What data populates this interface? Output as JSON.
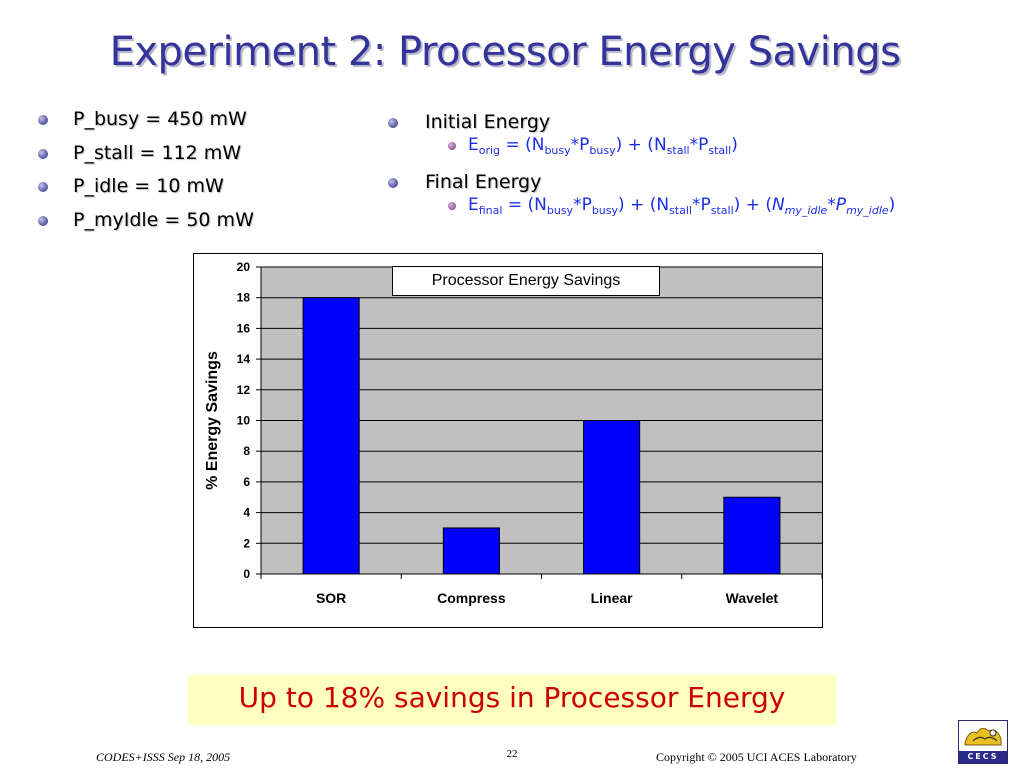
{
  "slide": {
    "title": "Experiment 2: Processor Energy Savings",
    "left_bullets": [
      "P_busy = 450 mW",
      "P_stall = 112 mW",
      "P_idle = 10 mW",
      "P_myIdle = 50 mW"
    ],
    "right_bullets": {
      "initial_label": "Initial Energy",
      "final_label": "Final Energy",
      "e_orig": {
        "e": "E",
        "e_sub": "orig",
        "part1": " = (N",
        "n_busy_sub": "busy",
        "part2": "*P",
        "p_busy_sub": "busy",
        "part3": ") + (N",
        "n_stall_sub": "stall",
        "part4": "*P",
        "p_stall_sub": "stall",
        "part5": ")"
      },
      "e_final": {
        "e": "E",
        "e_sub": "final",
        "part1": " = (N",
        "n_busy_sub": "busy",
        "part2": "*P",
        "p_busy_sub": "busy",
        "part3": ") + (N",
        "n_stall_sub": "stall",
        "part4": "*P",
        "p_stall_sub": "stall",
        "part5": ") + (",
        "n_my": "N",
        "n_my_sub": "my_idle",
        "star_p": "*P",
        "p_my_sub": "my_idle",
        "close": ")"
      }
    },
    "highlight": "Up to 18% savings in Processor Energy",
    "footer": {
      "left": "CODES+ISSS  Sep 18, 2005",
      "page_number": "22",
      "right": "Copyright © 2005  UCI ACES Laboratory"
    },
    "logo": {
      "text": "CECS",
      "icon": "cecs-logo-icon"
    }
  },
  "colors": {
    "title": "#333399",
    "sub_bullet_text": "#1a2fe6",
    "bar_fill": "#0000ff",
    "plot_bg": "#c0c0c0",
    "highlight_bg": "#ffffc0",
    "highlight_text": "#cc0000"
  },
  "chart_data": {
    "type": "bar",
    "title": "Processor Energy Savings",
    "xlabel": "",
    "ylabel": "% Energy Savings",
    "categories": [
      "SOR",
      "Compress",
      "Linear",
      "Wavelet"
    ],
    "values": [
      18,
      3,
      10,
      5
    ],
    "ylim": [
      0,
      20
    ],
    "yticks": [
      0,
      2,
      4,
      6,
      8,
      10,
      12,
      14,
      16,
      18,
      20
    ],
    "grid": true,
    "legend": "none"
  }
}
